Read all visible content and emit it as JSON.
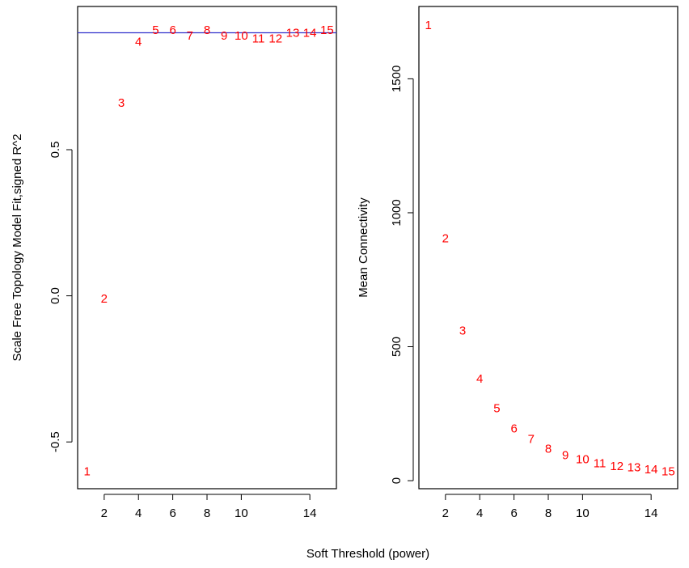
{
  "xlabel": "Soft Threshold (power)",
  "colors": {
    "points": "#ff0000",
    "cutline": "#3333cc",
    "axis": "#000000"
  },
  "chart_data": [
    {
      "type": "scatter",
      "ylabel": "Scale Free Topology Model Fit,signed R^2",
      "xlim": [
        0.45,
        15.55
      ],
      "ylim": [
        -0.66,
        0.99
      ],
      "xticks": [
        2,
        4,
        6,
        8,
        10,
        14
      ],
      "yticks": [
        -0.5,
        0.0,
        0.5
      ],
      "cutline": 0.9,
      "points": [
        {
          "label": "1",
          "x": 1,
          "y": -0.6
        },
        {
          "label": "2",
          "x": 2,
          "y": -0.01
        },
        {
          "label": "3",
          "x": 3,
          "y": 0.66
        },
        {
          "label": "4",
          "x": 4,
          "y": 0.87
        },
        {
          "label": "5",
          "x": 5,
          "y": 0.91
        },
        {
          "label": "6",
          "x": 6,
          "y": 0.91
        },
        {
          "label": "7",
          "x": 7,
          "y": 0.89
        },
        {
          "label": "8",
          "x": 8,
          "y": 0.91
        },
        {
          "label": "9",
          "x": 9,
          "y": 0.89
        },
        {
          "label": "10",
          "x": 10,
          "y": 0.89
        },
        {
          "label": "11",
          "x": 11,
          "y": 0.88
        },
        {
          "label": "12",
          "x": 12,
          "y": 0.88
        },
        {
          "label": "13",
          "x": 13,
          "y": 0.9
        },
        {
          "label": "14",
          "x": 14,
          "y": 0.9
        },
        {
          "label": "15",
          "x": 15,
          "y": 0.91
        }
      ]
    },
    {
      "type": "scatter",
      "ylabel": "Mean Connectivity",
      "xlim": [
        0.45,
        15.55
      ],
      "ylim": [
        -30,
        1770
      ],
      "xticks": [
        2,
        4,
        6,
        8,
        10,
        14
      ],
      "yticks": [
        0,
        500,
        1000,
        1500
      ],
      "points": [
        {
          "label": "1",
          "x": 1,
          "y": 1700
        },
        {
          "label": "2",
          "x": 2,
          "y": 905
        },
        {
          "label": "3",
          "x": 3,
          "y": 560
        },
        {
          "label": "4",
          "x": 4,
          "y": 380
        },
        {
          "label": "5",
          "x": 5,
          "y": 270
        },
        {
          "label": "6",
          "x": 6,
          "y": 195
        },
        {
          "label": "7",
          "x": 7,
          "y": 155
        },
        {
          "label": "8",
          "x": 8,
          "y": 120
        },
        {
          "label": "9",
          "x": 9,
          "y": 95
        },
        {
          "label": "10",
          "x": 10,
          "y": 80
        },
        {
          "label": "11",
          "x": 11,
          "y": 65
        },
        {
          "label": "12",
          "x": 12,
          "y": 55
        },
        {
          "label": "13",
          "x": 13,
          "y": 50
        },
        {
          "label": "14",
          "x": 14,
          "y": 42
        },
        {
          "label": "15",
          "x": 15,
          "y": 35
        }
      ]
    }
  ]
}
